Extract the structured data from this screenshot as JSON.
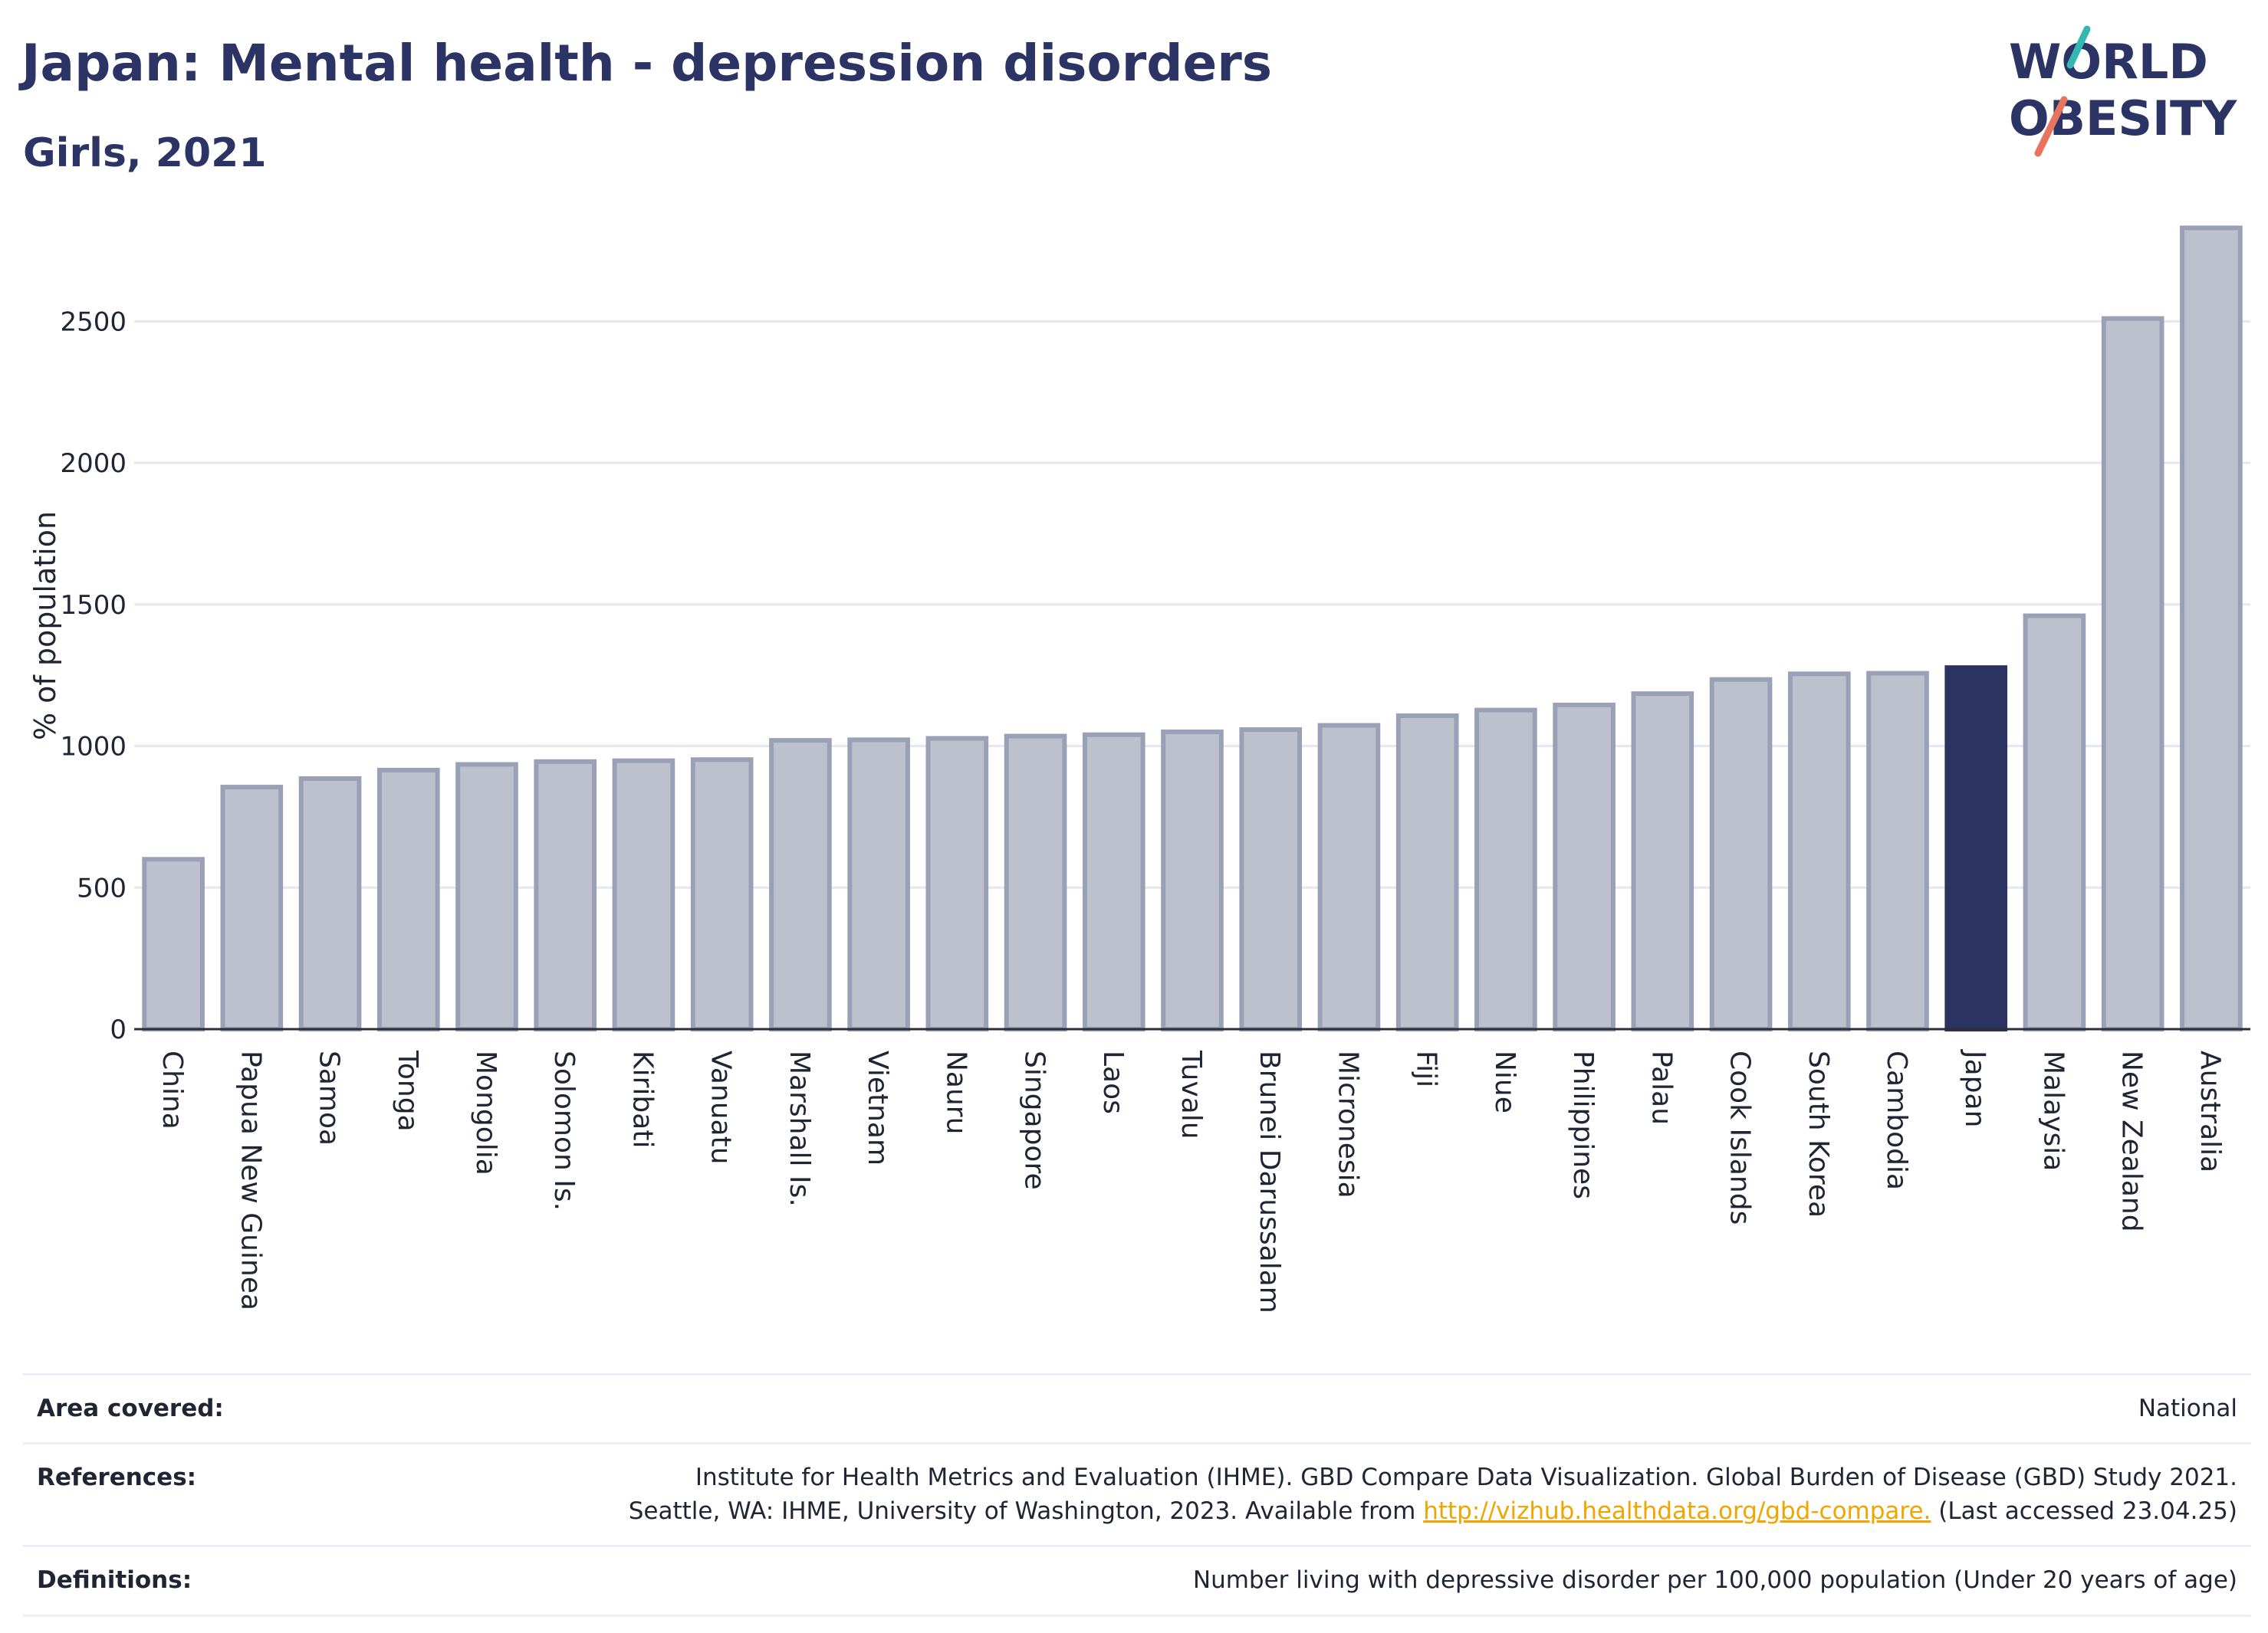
{
  "header": {
    "title": "Japan: Mental health - depression disorders",
    "subtitle": "Girls, 2021"
  },
  "logo": {
    "line1": "WORLD",
    "line2": "OBESITY"
  },
  "chart_data": {
    "type": "bar",
    "ylabel": "% of population",
    "ylim": [
      0,
      2850
    ],
    "yticks": [
      0,
      500,
      1000,
      1500,
      2000,
      2500
    ],
    "grid": true,
    "highlight": "Japan",
    "colors": {
      "bar": "#bdc1ce",
      "bar_border": "#9aa0b6",
      "highlight": "#2b3461",
      "grid": "#e6e8ef",
      "axis": "#2b2f3a"
    },
    "categories": [
      "China",
      "Papua New Guinea",
      "Samoa",
      "Tonga",
      "Mongolia",
      "Solomon Is.",
      "Kiribati",
      "Vanuatu",
      "Marshall Is.",
      "Vietnam",
      "Nauru",
      "Singapore",
      "Laos",
      "Tuvalu",
      "Brunei Darussalam",
      "Micronesia",
      "Fiji",
      "Niue",
      "Philippines",
      "Palau",
      "Cook Islands",
      "South Korea",
      "Cambodia",
      "Japan",
      "Malaysia",
      "New Zealand",
      "Australia"
    ],
    "values": [
      600,
      855,
      885,
      915,
      935,
      945,
      948,
      952,
      1020,
      1022,
      1027,
      1035,
      1040,
      1050,
      1058,
      1073,
      1107,
      1127,
      1145,
      1185,
      1235,
      1255,
      1257,
      1277,
      1460,
      2510,
      2830
    ]
  },
  "meta": {
    "area_label": "Area covered:",
    "area_value": "National",
    "references_label": "References:",
    "references_line1": "Institute for Health Metrics and Evaluation (IHME). GBD Compare Data Visualization. Global Burden of Disease (GBD) Study 2021.",
    "references_line2_pre": "Seattle, WA: IHME, University of Washington, 2023. Available from ",
    "references_link": "http://vizhub.healthdata.org/gbd-compare.",
    "references_line2_post": " (Last accessed 23.04.25)",
    "definitions_label": "Definitions:",
    "definitions_value": "Number living with depressive disorder per 100,000 population (Under 20 years of age)"
  }
}
